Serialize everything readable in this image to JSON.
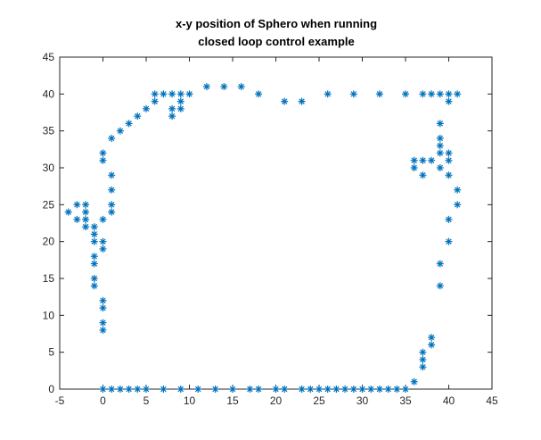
{
  "chart_data": {
    "type": "scatter",
    "title": [
      "x-y position of Sphero when running",
      "closed loop control example"
    ],
    "xlabel": "",
    "ylabel": "",
    "xlim": [
      -5,
      45
    ],
    "ylim": [
      0,
      45
    ],
    "xticks": [
      -5,
      0,
      5,
      10,
      15,
      20,
      25,
      30,
      35,
      40,
      45
    ],
    "yticks": [
      0,
      5,
      10,
      15,
      20,
      25,
      30,
      35,
      40,
      45
    ],
    "grid": false,
    "marker": "*",
    "color": "#0072BD",
    "points": [
      [
        0,
        0
      ],
      [
        1,
        0
      ],
      [
        2,
        0
      ],
      [
        3,
        0
      ],
      [
        4,
        0
      ],
      [
        5,
        0
      ],
      [
        7,
        0
      ],
      [
        9,
        0
      ],
      [
        11,
        0
      ],
      [
        13,
        0
      ],
      [
        15,
        0
      ],
      [
        17,
        0
      ],
      [
        18,
        0
      ],
      [
        20,
        0
      ],
      [
        21,
        0
      ],
      [
        23,
        0
      ],
      [
        24,
        0
      ],
      [
        25,
        0
      ],
      [
        26,
        0
      ],
      [
        27,
        0
      ],
      [
        28,
        0
      ],
      [
        29,
        0
      ],
      [
        30,
        0
      ],
      [
        31,
        0
      ],
      [
        32,
        0
      ],
      [
        33,
        0
      ],
      [
        34,
        0
      ],
      [
        35,
        0
      ],
      [
        36,
        1
      ],
      [
        37,
        3
      ],
      [
        37,
        4
      ],
      [
        37,
        5
      ],
      [
        38,
        6
      ],
      [
        38,
        7
      ],
      [
        39,
        14
      ],
      [
        39,
        17
      ],
      [
        40,
        20
      ],
      [
        40,
        23
      ],
      [
        41,
        25
      ],
      [
        41,
        27
      ],
      [
        40,
        29
      ],
      [
        40,
        31
      ],
      [
        40,
        32
      ],
      [
        39,
        30
      ],
      [
        39,
        32
      ],
      [
        39,
        33
      ],
      [
        39,
        34
      ],
      [
        39,
        36
      ],
      [
        38,
        31
      ],
      [
        37,
        31
      ],
      [
        37,
        29
      ],
      [
        36,
        31
      ],
      [
        36,
        30
      ],
      [
        40,
        39
      ],
      [
        41,
        40
      ],
      [
        40,
        40
      ],
      [
        39,
        40
      ],
      [
        38,
        40
      ],
      [
        37,
        40
      ],
      [
        35,
        40
      ],
      [
        32,
        40
      ],
      [
        29,
        40
      ],
      [
        26,
        40
      ],
      [
        23,
        39
      ],
      [
        21,
        39
      ],
      [
        18,
        40
      ],
      [
        16,
        41
      ],
      [
        14,
        41
      ],
      [
        12,
        41
      ],
      [
        10,
        40
      ],
      [
        9,
        40
      ],
      [
        8,
        40
      ],
      [
        7,
        40
      ],
      [
        6,
        40
      ],
      [
        6,
        39
      ],
      [
        9,
        39
      ],
      [
        9,
        38
      ],
      [
        8,
        38
      ],
      [
        8,
        37
      ],
      [
        5,
        38
      ],
      [
        4,
        37
      ],
      [
        3,
        36
      ],
      [
        2,
        35
      ],
      [
        1,
        34
      ],
      [
        0,
        32
      ],
      [
        0,
        31
      ],
      [
        1,
        29
      ],
      [
        1,
        27
      ],
      [
        1,
        25
      ],
      [
        1,
        24
      ],
      [
        0,
        23
      ],
      [
        -4,
        24
      ],
      [
        -3,
        25
      ],
      [
        -3,
        23
      ],
      [
        -2,
        25
      ],
      [
        -2,
        24
      ],
      [
        -2,
        23
      ],
      [
        -2,
        22
      ],
      [
        -1,
        22
      ],
      [
        -1,
        21
      ],
      [
        -1,
        20
      ],
      [
        0,
        20
      ],
      [
        0,
        19
      ],
      [
        -1,
        18
      ],
      [
        -1,
        17
      ],
      [
        -1,
        15
      ],
      [
        -1,
        14
      ],
      [
        0,
        12
      ],
      [
        0,
        11
      ],
      [
        0,
        9
      ],
      [
        0,
        8
      ]
    ]
  }
}
